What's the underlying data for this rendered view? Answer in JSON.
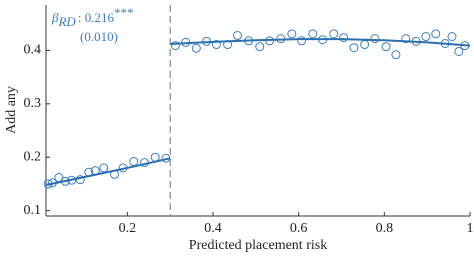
{
  "chart_data": {
    "type": "scatter",
    "x_label": "Predicted placement risk",
    "y_label": "Add any",
    "annotation": {
      "symbol": "β",
      "subscript": "RD",
      "estimate": ": 0.216",
      "stars": "***",
      "se": "(0.010)"
    },
    "xlim": [
      0.01,
      1
    ],
    "ylim": [
      0.09,
      0.485
    ],
    "xticks": [
      0.2,
      0.4,
      0.6,
      0.8,
      1
    ],
    "yticks": [
      0.1,
      0.2,
      0.3,
      0.4
    ],
    "cutoff": 0.3,
    "series": [
      {
        "style": "markers",
        "color": "#3a7fc1",
        "x": [
          0.015,
          0.025,
          0.04,
          0.055,
          0.07,
          0.09,
          0.11,
          0.125,
          0.145,
          0.17,
          0.19,
          0.215,
          0.24,
          0.265,
          0.29
        ],
        "values": [
          0.15,
          0.152,
          0.162,
          0.155,
          0.157,
          0.158,
          0.172,
          0.175,
          0.18,
          0.168,
          0.18,
          0.192,
          0.19,
          0.2,
          0.198
        ]
      },
      {
        "style": "markers",
        "color": "#3a7fc1",
        "x": [
          0.312,
          0.336,
          0.361,
          0.385,
          0.408,
          0.434,
          0.457,
          0.483,
          0.509,
          0.532,
          0.558,
          0.584,
          0.607,
          0.633,
          0.656,
          0.682,
          0.705,
          0.729,
          0.754,
          0.778,
          0.804,
          0.827,
          0.85,
          0.874,
          0.897,
          0.92,
          0.942,
          0.958,
          0.974,
          0.988
        ],
        "values": [
          0.409,
          0.415,
          0.404,
          0.417,
          0.411,
          0.411,
          0.428,
          0.418,
          0.407,
          0.418,
          0.422,
          0.431,
          0.418,
          0.431,
          0.42,
          0.431,
          0.424,
          0.405,
          0.411,
          0.422,
          0.407,
          0.392,
          0.422,
          0.417,
          0.426,
          0.431,
          0.413,
          0.426,
          0.398,
          0.409
        ]
      },
      {
        "style": "line",
        "color": "#2a6fb0",
        "x": [
          0.01,
          0.1,
          0.2,
          0.3
        ],
        "values": [
          0.148,
          0.163,
          0.18,
          0.198
        ]
      },
      {
        "style": "line",
        "color": "#2a6fb0",
        "x": [
          0.3,
          0.4,
          0.5,
          0.6,
          0.7,
          0.8,
          0.9,
          1
        ],
        "values": [
          0.412,
          0.416,
          0.419,
          0.421,
          0.421,
          0.419,
          0.415,
          0.409
        ]
      }
    ]
  }
}
